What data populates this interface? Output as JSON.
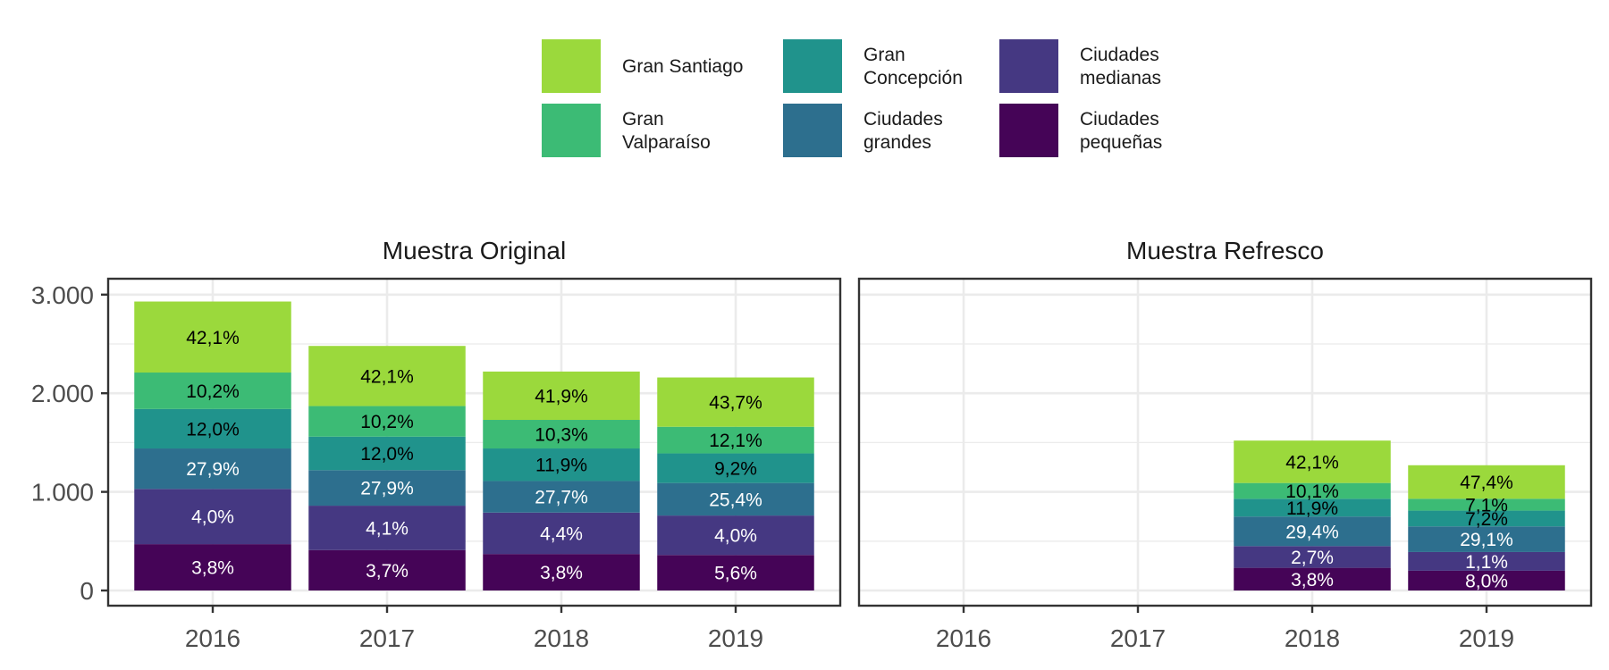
{
  "chart_data": {
    "type": "bar",
    "stacked": true,
    "categories": [
      "2016",
      "2017",
      "2018",
      "2019"
    ],
    "ylim": [
      0,
      3000
    ],
    "y_ticks": [
      0,
      1000,
      2000,
      3000
    ],
    "y_tick_labels": [
      "0",
      "1.000",
      "2.000",
      "3.000"
    ],
    "xlabel": "",
    "ylabel": "",
    "grid": true,
    "legend_position": "top",
    "legend": [
      {
        "name": "Gran Santiago",
        "color": "#9bd93c"
      },
      {
        "name": "Gran Valparaíso",
        "color": "#3cbb75"
      },
      {
        "name": "Gran Concepción",
        "color": "#20938c"
      },
      {
        "name": "Ciudades grandes",
        "color": "#2d6f8e"
      },
      {
        "name": "Ciudades medianas",
        "color": "#453882"
      },
      {
        "name": "Ciudades pequeñas",
        "color": "#450457"
      }
    ],
    "stack_order_bottom_to_top": [
      "Ciudades pequeñas",
      "Ciudades medianas",
      "Ciudades grandes",
      "Gran Concepción",
      "Gran Valparaíso",
      "Gran Santiago"
    ],
    "label_colors": {
      "Gran Santiago": "#000000",
      "Gran Valparaíso": "#000000",
      "Gran Concepción": "#000000",
      "Ciudades grandes": "#ffffff",
      "Ciudades medianas": "#ffffff",
      "Ciudades pequeñas": "#ffffff"
    },
    "panels": [
      {
        "title": "Muestra Original",
        "bars": [
          {
            "category": "2016",
            "segments": [
              {
                "series": "Ciudades pequeñas",
                "value": 470,
                "label": "3,8%"
              },
              {
                "series": "Ciudades medianas",
                "value": 560,
                "label": "4,0%"
              },
              {
                "series": "Ciudades grandes",
                "value": 410,
                "label": "27,9%"
              },
              {
                "series": "Gran Concepción",
                "value": 400,
                "label": "12,0%"
              },
              {
                "series": "Gran Valparaíso",
                "value": 370,
                "label": "10,2%"
              },
              {
                "series": "Gran Santiago",
                "value": 720,
                "label": "42,1%"
              }
            ]
          },
          {
            "category": "2017",
            "segments": [
              {
                "series": "Ciudades pequeñas",
                "value": 410,
                "label": "3,7%"
              },
              {
                "series": "Ciudades medianas",
                "value": 450,
                "label": "4,1%"
              },
              {
                "series": "Ciudades grandes",
                "value": 360,
                "label": "27,9%"
              },
              {
                "series": "Gran Concepción",
                "value": 340,
                "label": "12,0%"
              },
              {
                "series": "Gran Valparaíso",
                "value": 310,
                "label": "10,2%"
              },
              {
                "series": "Gran Santiago",
                "value": 610,
                "label": "42,1%"
              }
            ]
          },
          {
            "category": "2018",
            "segments": [
              {
                "series": "Ciudades pequeñas",
                "value": 370,
                "label": "3,8%"
              },
              {
                "series": "Ciudades medianas",
                "value": 420,
                "label": "4,4%"
              },
              {
                "series": "Ciudades grandes",
                "value": 320,
                "label": "27,7%"
              },
              {
                "series": "Gran Concepción",
                "value": 330,
                "label": "11,9%"
              },
              {
                "series": "Gran Valparaíso",
                "value": 290,
                "label": "10,3%"
              },
              {
                "series": "Gran Santiago",
                "value": 490,
                "label": "41,9%"
              }
            ]
          },
          {
            "category": "2019",
            "segments": [
              {
                "series": "Ciudades pequeñas",
                "value": 360,
                "label": "5,6%"
              },
              {
                "series": "Ciudades medianas",
                "value": 400,
                "label": "4,0%"
              },
              {
                "series": "Ciudades grandes",
                "value": 330,
                "label": "25,4%"
              },
              {
                "series": "Gran Concepción",
                "value": 300,
                "label": "9,2%"
              },
              {
                "series": "Gran Valparaíso",
                "value": 270,
                "label": "12,1%"
              },
              {
                "series": "Gran Santiago",
                "value": 500,
                "label": "43,7%"
              }
            ]
          }
        ]
      },
      {
        "title": "Muestra Refresco",
        "bars": [
          {
            "category": "2016",
            "segments": []
          },
          {
            "category": "2017",
            "segments": []
          },
          {
            "category": "2018",
            "segments": [
              {
                "series": "Ciudades pequeñas",
                "value": 230,
                "label": "3,8%"
              },
              {
                "series": "Ciudades medianas",
                "value": 220,
                "label": "2,7%"
              },
              {
                "series": "Ciudades grandes",
                "value": 300,
                "label": "29,4%"
              },
              {
                "series": "Gran Concepción",
                "value": 180,
                "label": "11,9%"
              },
              {
                "series": "Gran Valparaíso",
                "value": 160,
                "label": "10,1%"
              },
              {
                "series": "Gran Santiago",
                "value": 430,
                "label": "42,1%"
              }
            ]
          },
          {
            "category": "2019",
            "segments": [
              {
                "series": "Ciudades pequeñas",
                "value": 200,
                "label": "8,0%"
              },
              {
                "series": "Ciudades medianas",
                "value": 190,
                "label": "1,1%"
              },
              {
                "series": "Ciudades grandes",
                "value": 260,
                "label": "29,1%"
              },
              {
                "series": "Gran Concepción",
                "value": 160,
                "label": "7,2%"
              },
              {
                "series": "Gran Valparaíso",
                "value": 120,
                "label": "7,1%"
              },
              {
                "series": "Gran Santiago",
                "value": 340,
                "label": "47,4%"
              }
            ]
          }
        ]
      }
    ]
  }
}
